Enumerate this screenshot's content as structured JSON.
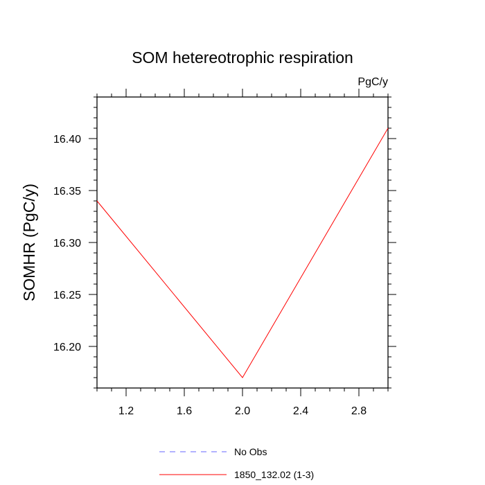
{
  "chart_data": {
    "type": "line",
    "title": "SOM hetereotrophic respiration",
    "units_label": "PgC/y",
    "ylabel": "SOMHR  (PgC/y)",
    "xlabel": "",
    "xlim": [
      1.0,
      3.0
    ],
    "ylim": [
      16.16,
      16.44
    ],
    "x_ticks": [
      1.2,
      1.6,
      2.0,
      2.4,
      2.8
    ],
    "x_tick_labels": [
      "1.2",
      "1.6",
      "2.0",
      "2.4",
      "2.8"
    ],
    "y_ticks": [
      16.2,
      16.25,
      16.3,
      16.35,
      16.4
    ],
    "y_tick_labels": [
      "16.20",
      "16.25",
      "16.30",
      "16.35",
      "16.40"
    ],
    "series": [
      {
        "name": "1850_132.02 (1-3)",
        "color": "#ff0000",
        "x": [
          1.0,
          2.0,
          3.0
        ],
        "y": [
          16.34,
          16.17,
          16.41
        ]
      }
    ],
    "legend": [
      {
        "label": "No Obs",
        "color": "#6666ff",
        "style": "dashed"
      },
      {
        "label": "1850_132.02 (1-3)",
        "color": "#ff0000",
        "style": "solid"
      }
    ]
  }
}
